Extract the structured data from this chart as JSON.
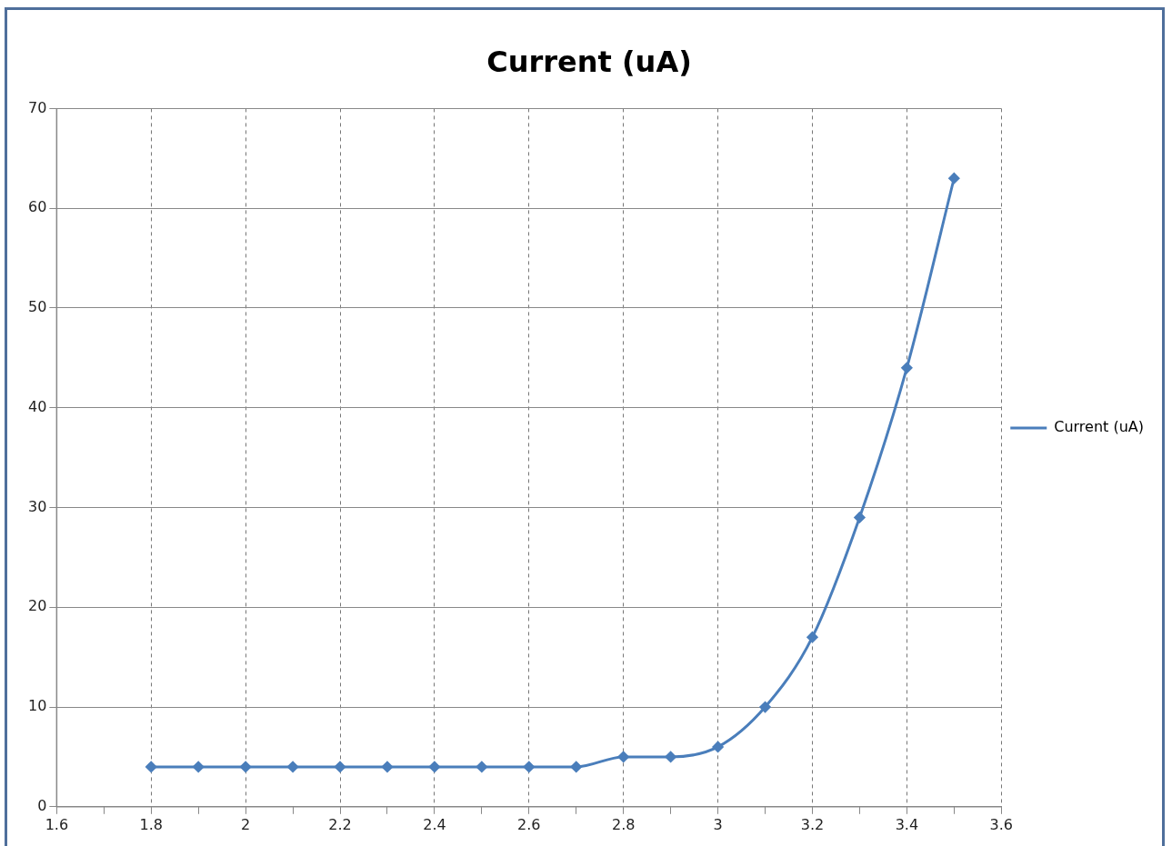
{
  "chart_data": {
    "type": "line",
    "title": "Current (uA)",
    "x": [
      1.8,
      1.9,
      2,
      2.1,
      2.2,
      2.3,
      2.4,
      2.5,
      2.6,
      2.7,
      2.8,
      2.9,
      3,
      3.1,
      3.2,
      3.3,
      3.4,
      3.5
    ],
    "series": [
      {
        "name": "Current (uA)",
        "color": "#4a7ebb",
        "values": [
          4,
          4,
          4,
          4,
          4,
          4,
          4,
          4,
          4,
          4,
          5,
          5,
          6,
          10,
          17,
          29,
          44,
          63
        ]
      }
    ],
    "xlim": [
      1.6,
      3.6
    ],
    "xticks": [
      1.6,
      {
        "value": 1.7,
        "label": null
      },
      1.8,
      {
        "value": 1.9,
        "label": null
      },
      2,
      {
        "value": 2.1,
        "label": null
      },
      2.2,
      {
        "value": 2.3,
        "label": null
      },
      2.4,
      {
        "value": 2.5,
        "label": null
      },
      2.6,
      {
        "value": 2.7,
        "label": null
      },
      2.8,
      {
        "value": 2.9,
        "label": null
      },
      3,
      {
        "value": 3.1,
        "label": null
      },
      3.2,
      {
        "value": 3.3,
        "label": null
      },
      3.4,
      {
        "value": 3.5,
        "label": null
      },
      3.6
    ],
    "ylim": [
      0,
      70
    ],
    "yticks": [
      0,
      10,
      20,
      30,
      40,
      50,
      60,
      70
    ],
    "grid": true,
    "legend": "right",
    "marker": "diamond",
    "line_style": "solid"
  }
}
